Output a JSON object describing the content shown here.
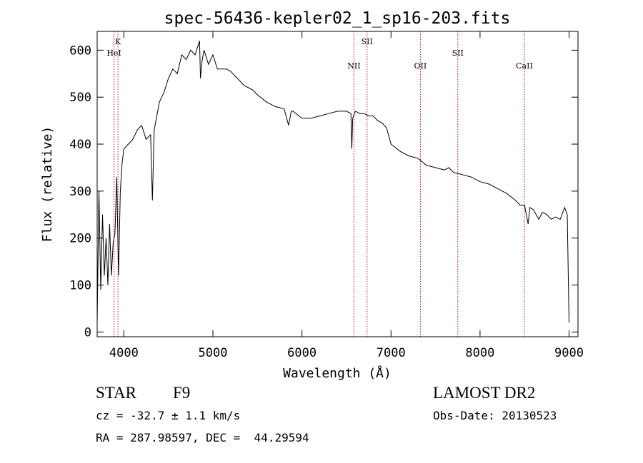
{
  "chart_data": {
    "type": "line",
    "title": "spec-56436-kepler02_1_sp16-203.fits",
    "xlabel": "Wavelength (Å)",
    "ylabel": "Flux (relative)",
    "xlim": [
      3700,
      9100
    ],
    "ylim": [
      -10,
      640
    ],
    "xticks": [
      4000,
      5000,
      6000,
      7000,
      8000,
      9000
    ],
    "yticks": [
      0,
      100,
      200,
      300,
      400,
      500,
      600
    ],
    "line_color": "#000000",
    "marker_color": "#b22222",
    "series": [
      {
        "x": [
          3700,
          3720,
          3740,
          3760,
          3780,
          3800,
          3820,
          3840,
          3860,
          3880,
          3900,
          3920,
          3940,
          3960,
          3980,
          4000,
          4050,
          4100,
          4150,
          4200,
          4250,
          4300,
          4320,
          4340,
          4400,
          4450,
          4500,
          4550,
          4600,
          4650,
          4700,
          4750,
          4800,
          4850,
          4860,
          4880,
          4900,
          4950,
          5000,
          5050,
          5100,
          5150,
          5200,
          5250,
          5300,
          5350,
          5400,
          5450,
          5500,
          5600,
          5700,
          5800,
          5850,
          5880,
          5900,
          6000,
          6100,
          6200,
          6300,
          6400,
          6500,
          6550,
          6560,
          6570,
          6600,
          6650,
          6700,
          6750,
          6800,
          6850,
          6900,
          6950,
          7000,
          7100,
          7200,
          7300,
          7400,
          7500,
          7600,
          7650,
          7700,
          7800,
          7900,
          8000,
          8100,
          8200,
          8300,
          8400,
          8450,
          8500,
          8540,
          8560,
          8600,
          8660,
          8700,
          8750,
          8800,
          8850,
          8900,
          8950,
          8980,
          9000
        ],
        "y": [
          20,
          300,
          90,
          250,
          120,
          200,
          100,
          230,
          120,
          190,
          210,
          330,
          120,
          300,
          360,
          390,
          400,
          410,
          430,
          440,
          410,
          420,
          280,
          430,
          490,
          510,
          540,
          560,
          550,
          590,
          580,
          600,
          590,
          620,
          540,
          580,
          600,
          570,
          590,
          560,
          560,
          560,
          555,
          545,
          535,
          525,
          520,
          515,
          505,
          490,
          480,
          475,
          440,
          470,
          470,
          455,
          455,
          460,
          465,
          470,
          470,
          465,
          390,
          455,
          470,
          465,
          465,
          460,
          460,
          450,
          445,
          435,
          400,
          385,
          375,
          370,
          355,
          350,
          345,
          350,
          340,
          335,
          330,
          320,
          315,
          305,
          295,
          280,
          270,
          270,
          230,
          265,
          260,
          240,
          255,
          250,
          240,
          245,
          240,
          265,
          250,
          20
        ]
      }
    ],
    "line_markers": [
      {
        "label": "K",
        "x": 3934
      },
      {
        "label": "HeI",
        "x": 3889
      },
      {
        "label": "SII",
        "x": 6731
      },
      {
        "label": "NII",
        "x": 6584
      },
      {
        "label": "OII",
        "x": 7330
      },
      {
        "label": "SII",
        "x": 7750
      },
      {
        "label": "CaII",
        "x": 8498
      }
    ]
  },
  "info": {
    "object_class": "STAR",
    "subclass": "F9",
    "redshift": "cz = -32.7 ± 1.1 km/s",
    "coords": "RA = 287.98597, DEC =  44.29594",
    "survey": "LAMOST DR2",
    "obs_date": "Obs-Date: 20130523"
  }
}
